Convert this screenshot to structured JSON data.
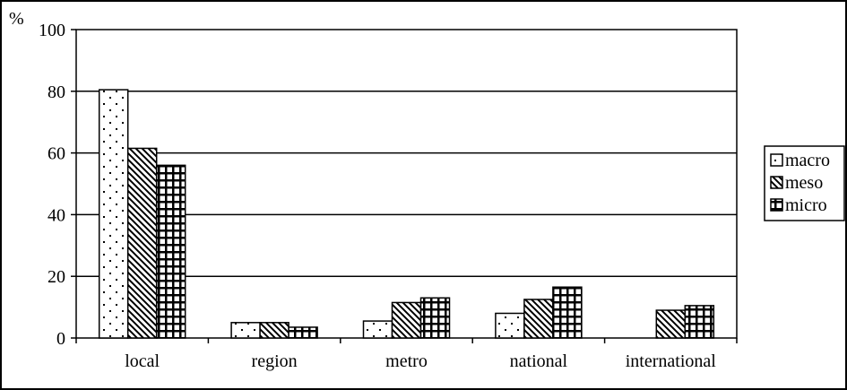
{
  "chart_data": {
    "type": "bar",
    "title": "",
    "xlabel": "",
    "ylabel": "%",
    "ylim": [
      0,
      100
    ],
    "yticks": [
      0,
      20,
      40,
      60,
      80,
      100
    ],
    "grid": true,
    "legend_position": "right",
    "categories": [
      "local",
      "region",
      "metro",
      "national",
      "international"
    ],
    "series": [
      {
        "name": "macro",
        "pattern": "dots",
        "values": [
          80.5,
          5,
          5.5,
          8,
          0
        ]
      },
      {
        "name": "meso",
        "pattern": "diagonal",
        "values": [
          61.5,
          5,
          11.5,
          12.5,
          9
        ]
      },
      {
        "name": "micro",
        "pattern": "grid",
        "values": [
          56,
          3.5,
          13,
          16.5,
          10.5
        ]
      }
    ]
  }
}
